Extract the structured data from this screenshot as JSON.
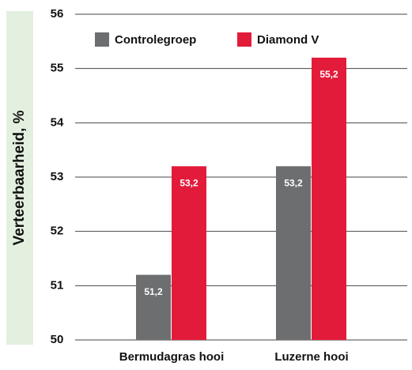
{
  "chart_data": {
    "type": "bar",
    "y_label": "Verteerbaarheid, %",
    "categories": [
      "Bermudagras hooi",
      "Luzerne hooi"
    ],
    "series": [
      {
        "name": "Controlegroep",
        "color": "#6d6e70",
        "values": [
          51.2,
          53.2
        ],
        "value_labels": [
          "51,2",
          "53,2"
        ]
      },
      {
        "name": "Diamond V",
        "color": "#e31b3a",
        "values": [
          53.2,
          55.2
        ],
        "value_labels": [
          "53,2",
          "55,2"
        ]
      }
    ],
    "ylim": [
      50,
      56
    ],
    "yticks": [
      50,
      51,
      52,
      53,
      54,
      55,
      56
    ],
    "grid": true,
    "legend": "top"
  }
}
